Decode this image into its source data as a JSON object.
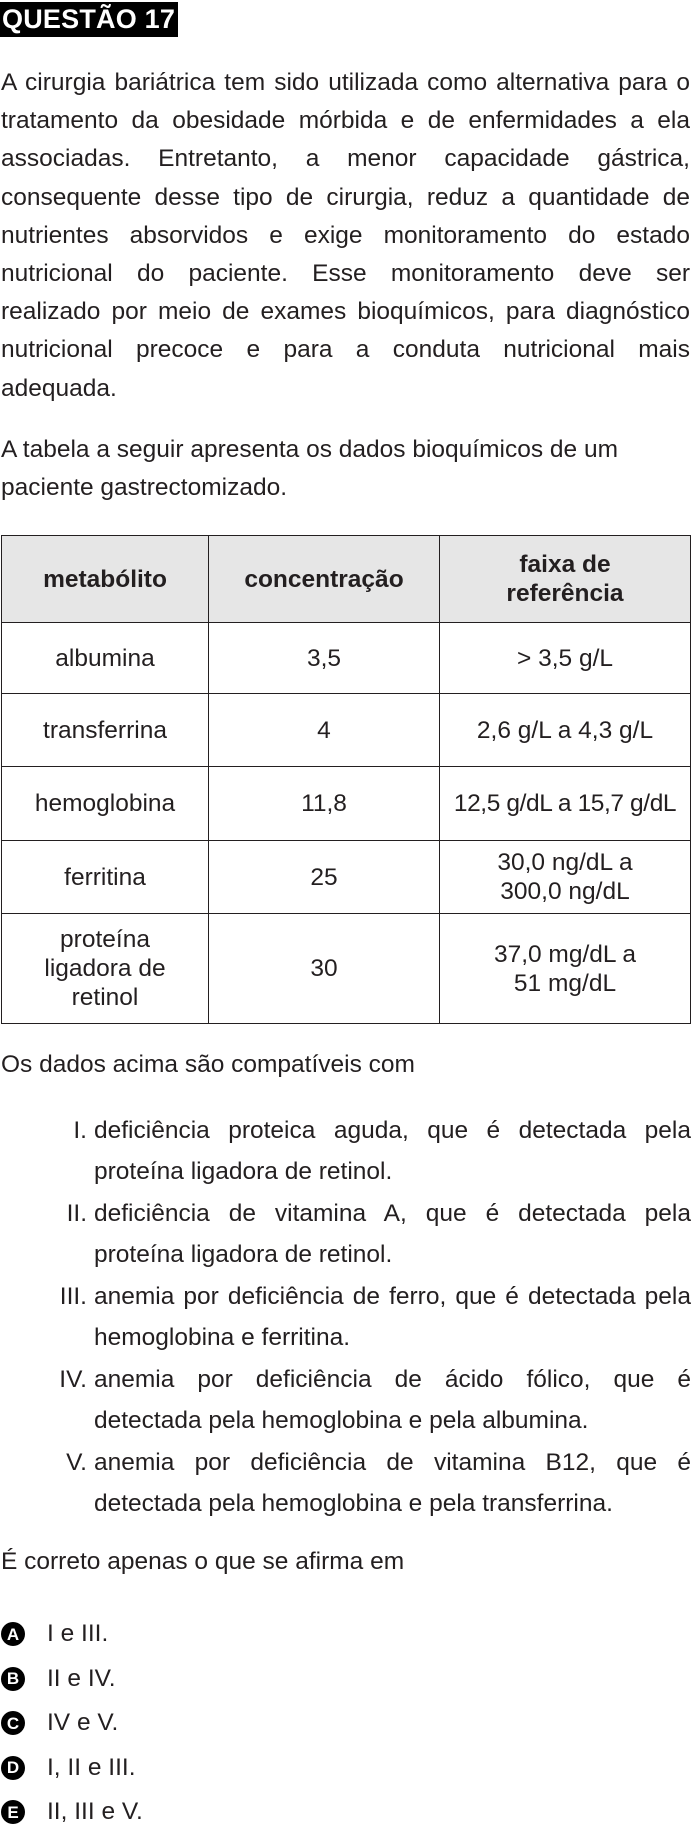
{
  "header": {
    "title": "QUESTÃO 17"
  },
  "intro": "A cirurgia bariátrica tem sido utilizada como alternativa para o tratamento da obesidade mórbida e de enfermidades a ela associadas. Entretanto, a menor capacidade gástrica, consequente desse tipo de cirurgia, reduz a quantidade de nutrientes absorvidos e exige monitoramento do estado nutricional do paciente. Esse monitoramento deve ser realizado por meio de exames bioquímicos, para diagnóstico nutricional precoce e para a conduta nutricional mais adequada.",
  "table_intro": "A tabela a seguir apresenta os dados bioquímicos de um paciente gastrectomizado.",
  "table": {
    "headers": [
      "metabólito",
      "concentração",
      "faixa de referência"
    ],
    "rows": [
      {
        "metabolito": "albumina",
        "concentracao": "3,5",
        "referencia": "> 3,5 g/L"
      },
      {
        "metabolito": "transferrina",
        "concentracao": "4",
        "referencia": "2,6 g/L a 4,3 g/L"
      },
      {
        "metabolito": "hemoglobina",
        "concentracao": "11,8",
        "referencia": "12,5 g/dL a 15,7 g/dL"
      },
      {
        "metabolito": "ferritina",
        "concentracao": "25",
        "referencia": "30,0 ng/dL a 300,0 ng/dL"
      },
      {
        "metabolito": "proteína ligadora de retinol",
        "concentracao": "30",
        "referencia": "37,0 mg/dL a 51 mg/dL"
      }
    ]
  },
  "lead": "Os dados acima são compatíveis com",
  "items": [
    {
      "num": "I.",
      "text": "deficiência proteica aguda, que é detectada pela proteína ligadora de retinol."
    },
    {
      "num": "II.",
      "text": "deficiência de vitamina A, que é detectada pela proteína ligadora de retinol."
    },
    {
      "num": "III.",
      "text": "anemia por deficiência de ferro, que é detectada pela hemoglobina e ferritina."
    },
    {
      "num": "IV.",
      "text": "anemia por deficiência de ácido fólico, que é detectada pela hemoglobina e pela albumina."
    },
    {
      "num": "V.",
      "text": "anemia por deficiência de vitamina B12, que é detectada pela hemoglobina e pela transferrina."
    }
  ],
  "question": "É correto apenas o que se afirma em",
  "options": [
    {
      "letter": "A",
      "text": "I e III."
    },
    {
      "letter": "B",
      "text": "II e IV."
    },
    {
      "letter": "C",
      "text": "IV e V."
    },
    {
      "letter": "D",
      "text": "I, II e III."
    },
    {
      "letter": "E",
      "text": "II, III e V."
    }
  ]
}
